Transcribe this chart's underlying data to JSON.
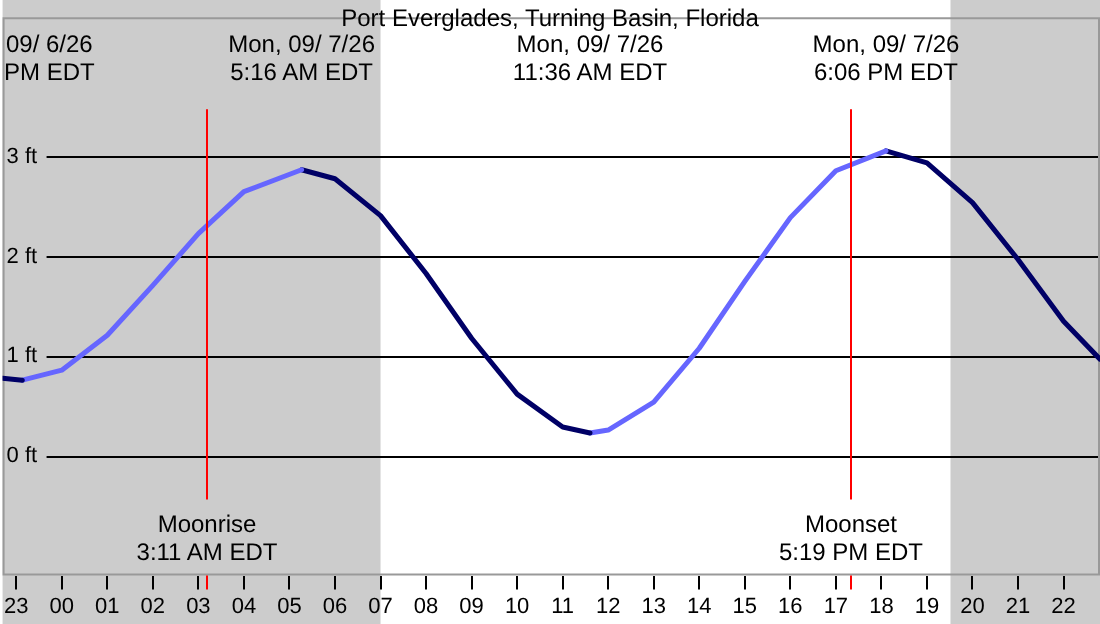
{
  "chart_data": {
    "type": "line",
    "title": "Port Everglades, Turning Basin, Florida",
    "series": [
      {
        "color": "#000066",
        "x": [
          "--09-06T22:42",
          "--09-06T23:08"
        ],
        "values": [
          0.78,
          0.76
        ]
      },
      {
        "color": "#6666ff",
        "x": [
          "--09-06T23:08",
          "--09-07T00:00",
          "--09-07T01:00",
          "--09-07T02:00",
          "--09-07T03:00",
          "--09-07T04:00",
          "--09-07T05:16"
        ],
        "values": [
          0.76,
          0.86,
          1.21,
          1.71,
          2.23,
          2.65,
          2.87
        ]
      },
      {
        "color": "#000066",
        "x": [
          "--09-07T05:16",
          "--09-07T06:00",
          "--09-07T07:00",
          "--09-07T08:00",
          "--09-07T09:00",
          "--09-07T10:00",
          "--09-07T11:00",
          "--09-07T11:36"
        ],
        "values": [
          2.87,
          2.78,
          2.41,
          1.83,
          1.18,
          0.62,
          0.29,
          0.23
        ]
      },
      {
        "color": "#6666ff",
        "x": [
          "--09-07T11:36",
          "--09-07T12:00",
          "--09-07T13:00",
          "--09-07T14:00",
          "--09-07T15:00",
          "--09-07T16:00",
          "--09-07T17:00",
          "--09-07T18:06"
        ],
        "values": [
          0.23,
          0.26,
          0.54,
          1.08,
          1.75,
          2.39,
          2.86,
          3.06
        ]
      },
      {
        "color": "#000066",
        "x": [
          "--09-07T18:06",
          "--09-07T19:00",
          "--09-07T20:00",
          "--09-07T21:00",
          "--09-07T22:00",
          "--09-07T22:48"
        ],
        "values": [
          3.06,
          2.94,
          2.54,
          1.97,
          1.35,
          0.97
        ]
      }
    ],
    "xlim": [
      "--09-06T22:42",
      "--09-07T22:48"
    ],
    "xticks": [
      {
        "value": "--09-06T23:00",
        "label": "23"
      },
      {
        "value": "--09-07T00:00",
        "label": "00"
      },
      {
        "value": "--09-07T01:00",
        "label": "01"
      },
      {
        "value": "--09-07T02:00",
        "label": "02"
      },
      {
        "value": "--09-07T03:00",
        "label": "03"
      },
      {
        "value": "--09-07T04:00",
        "label": "04"
      },
      {
        "value": "--09-07T05:00",
        "label": "05"
      },
      {
        "value": "--09-07T06:00",
        "label": "06"
      },
      {
        "value": "--09-07T07:00",
        "label": "07"
      },
      {
        "value": "--09-07T08:00",
        "label": "08"
      },
      {
        "value": "--09-07T09:00",
        "label": "09"
      },
      {
        "value": "--09-07T10:00",
        "label": "10"
      },
      {
        "value": "--09-07T11:00",
        "label": "11"
      },
      {
        "value": "--09-07T12:00",
        "label": "12"
      },
      {
        "value": "--09-07T13:00",
        "label": "13"
      },
      {
        "value": "--09-07T14:00",
        "label": "14"
      },
      {
        "value": "--09-07T15:00",
        "label": "15"
      },
      {
        "value": "--09-07T16:00",
        "label": "16"
      },
      {
        "value": "--09-07T17:00",
        "label": "17"
      },
      {
        "value": "--09-07T18:00",
        "label": "18"
      },
      {
        "value": "--09-07T19:00",
        "label": "19"
      },
      {
        "value": "--09-07T20:00",
        "label": "20"
      },
      {
        "value": "--09-07T21:00",
        "label": "21"
      },
      {
        "value": "--09-07T22:00",
        "label": "22"
      }
    ],
    "ylim": [
      -1.2,
      4.4
    ],
    "yticks": [
      {
        "value": 0,
        "label": "0 ft"
      },
      {
        "value": 1,
        "label": "1 ft"
      },
      {
        "value": 2,
        "label": "2 ft"
      },
      {
        "value": 3,
        "label": "3 ft"
      }
    ],
    "grid": "y",
    "legend": false,
    "marker": "none",
    "line_style": "solid",
    "bands": [
      {
        "axis": "x",
        "from": "--09-06T22:42",
        "to": "--09-07T07:00",
        "color": "#cccccc"
      },
      {
        "axis": "x",
        "from": "--09-07T19:31",
        "to": "--09-07T22:48",
        "color": "#cccccc"
      }
    ],
    "ref_lines": [
      {
        "axis": "x",
        "value": "--09-07T03:11",
        "label": "Moonrise\n3:11 AM EDT",
        "color": "#ff0000"
      },
      {
        "axis": "x",
        "value": "--09-07T17:19",
        "label": "Moonset\n5:19 PM EDT",
        "color": "#ff0000"
      }
    ],
    "annotations": [
      "09/ 6/26\nPM EDT",
      "Mon, 09/ 7/26\n5:16 AM EDT",
      "Mon, 09/ 7/26\n11:36 AM EDT",
      "Mon, 09/ 7/26\n6:06 PM EDT"
    ]
  }
}
